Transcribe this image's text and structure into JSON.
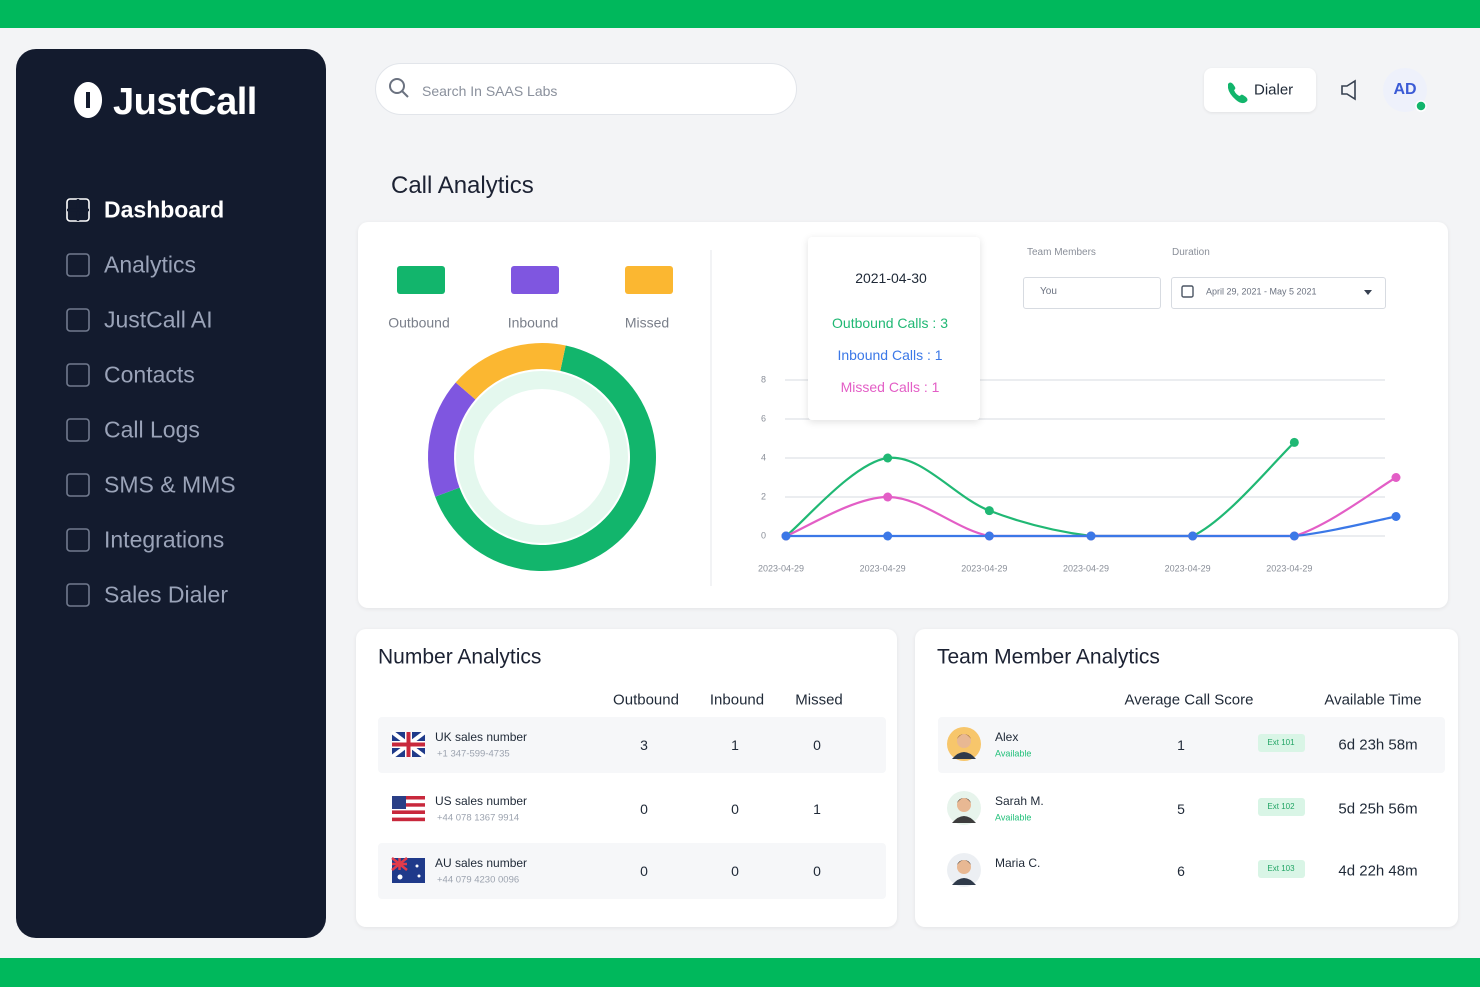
{
  "sidebar": {
    "brand": "JustCall",
    "nav": [
      "Dashboard",
      "Analytics",
      "JustCall AI",
      "Contacts",
      "Call Logs",
      "SMS & MMS",
      "Integrations",
      "Sales Dialer"
    ]
  },
  "topbar": {
    "search_placeholder": "Search In SAAS Labs",
    "dialer": "Dialer",
    "avatar": "AD"
  },
  "page_title": "Call Analytics",
  "filters": {
    "team_members_label": "Team Members",
    "team_members_value": "You",
    "duration_label": "Duration",
    "duration_value": "April 29, 2021 - May 5 2021"
  },
  "tooltip": {
    "date": "2021-04-30",
    "lines": [
      "Outbound Calls : 3",
      "Inbound Calls : 1",
      "Missed Calls : 1"
    ]
  },
  "chart_data": [
    {
      "type": "donut",
      "categories": [
        "Outbound",
        "Inbound",
        "Missed"
      ],
      "values": [
        66,
        17,
        17
      ],
      "colors": [
        "#12b56c",
        "#7f56e0",
        "#fbb731"
      ]
    },
    {
      "type": "line",
      "categories": [
        "2023-04-29",
        "2023-04-29",
        "2023-04-29",
        "2023-04-29",
        "2023-04-29",
        "2023-04-29",
        null
      ],
      "series": [
        {
          "color": "#20b874",
          "values": [
            0,
            4,
            1.3,
            0,
            0,
            4.8,
            null
          ]
        },
        {
          "color": "#e35ec6",
          "values": [
            0,
            2,
            0,
            0,
            0,
            0,
            3
          ]
        },
        {
          "color": "#3b78e7",
          "values": [
            0,
            0,
            0,
            0,
            0,
            0,
            1
          ]
        }
      ],
      "ylim": [
        0,
        8
      ],
      "yticks": [
        0,
        2,
        4,
        6,
        8
      ],
      "grid": true
    }
  ],
  "number_analytics": {
    "title": "Number Analytics",
    "columns": [
      "Outbound",
      "Inbound",
      "Missed"
    ],
    "rows": [
      {
        "name": "UK sales number",
        "phone": "+1 347-599-4735",
        "values": [
          3,
          1,
          0
        ]
      },
      {
        "name": "US sales number",
        "phone": "+44 078 1367 9914",
        "values": [
          0,
          0,
          1
        ]
      },
      {
        "name": "AU sales number",
        "phone": "+44 079 4230 0096",
        "values": [
          0,
          0,
          0
        ]
      }
    ]
  },
  "team_member_analytics": {
    "title": "Team Member Analytics",
    "columns": [
      "Average Call Score",
      "Available Time"
    ],
    "rows": [
      {
        "name": "Alex",
        "status": "Available",
        "score": 1,
        "ext": "Ext 101",
        "time": "6d 23h 58m"
      },
      {
        "name": "Sarah M.",
        "status": "Available",
        "score": 5,
        "ext": "Ext 102",
        "time": "5d 25h 56m"
      },
      {
        "name": "Maria C.",
        "score": 6,
        "ext": "Ext 103",
        "time": "4d 22h 48m"
      }
    ]
  }
}
